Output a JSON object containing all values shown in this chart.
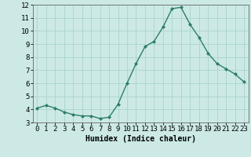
{
  "x": [
    0,
    1,
    2,
    3,
    4,
    5,
    6,
    7,
    8,
    9,
    10,
    11,
    12,
    13,
    14,
    15,
    16,
    17,
    18,
    19,
    20,
    21,
    22,
    23
  ],
  "y": [
    4.1,
    4.3,
    4.1,
    3.8,
    3.6,
    3.5,
    3.5,
    3.3,
    3.4,
    4.4,
    6.0,
    7.5,
    8.8,
    9.2,
    10.3,
    11.7,
    11.8,
    10.5,
    9.5,
    8.3,
    7.5,
    7.1,
    6.7,
    6.1
  ],
  "line_color": "#2d7d6e",
  "marker": "D",
  "marker_size": 2.0,
  "bg_color": "#cce9e5",
  "grid_color": "#aad4cf",
  "xlabel": "Humidex (Indice chaleur)",
  "ylim": [
    3,
    12
  ],
  "xlim": [
    -0.5,
    23.5
  ],
  "yticks": [
    3,
    4,
    5,
    6,
    7,
    8,
    9,
    10,
    11,
    12
  ],
  "xticks": [
    0,
    1,
    2,
    3,
    4,
    5,
    6,
    7,
    8,
    9,
    10,
    11,
    12,
    13,
    14,
    15,
    16,
    17,
    18,
    19,
    20,
    21,
    22,
    23
  ],
  "xlabel_fontsize": 7,
  "tick_fontsize": 6.5,
  "line_width": 1.0
}
